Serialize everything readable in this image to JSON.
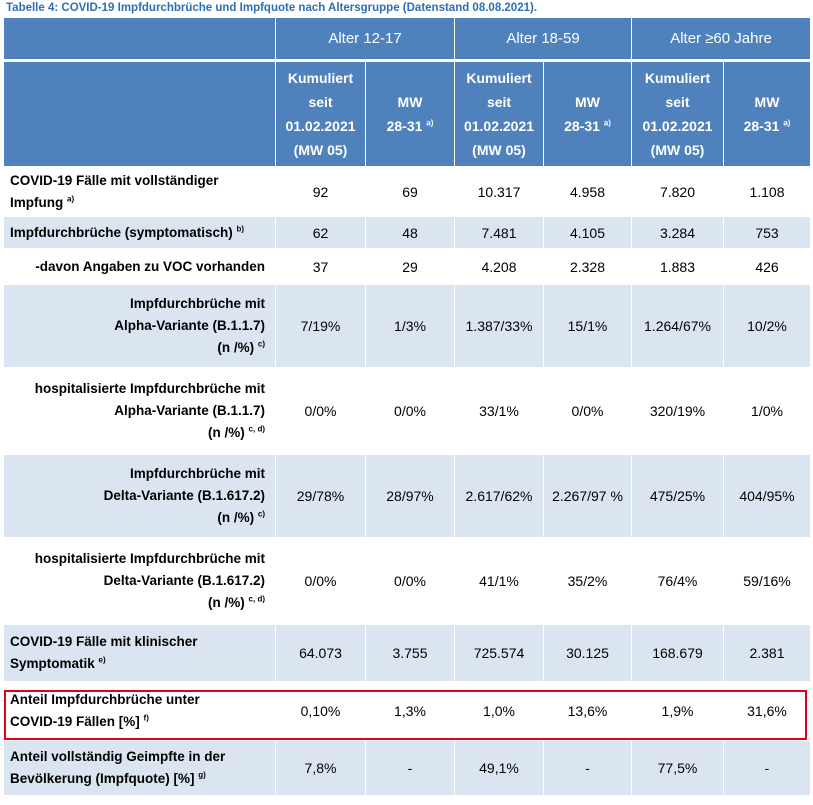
{
  "caption": "Tabelle 4: COVID-19 Impfdurchbrüche und Impfquote nach Altersgruppe (Datenstand 08.08.2021).",
  "age_groups": [
    "Alter 12-17",
    "Alter 18-59",
    "Alter ≥60 Jahre"
  ],
  "subheaders": {
    "kumuliert": [
      "Kumuliert",
      "seit",
      "01.02.2021",
      "(MW 05)"
    ],
    "mw": [
      "MW",
      "28-31"
    ],
    "mw_sup": "a)"
  },
  "rows": [
    {
      "label": [
        "COVID-19 Fälle mit vollständiger",
        "Impfung"
      ],
      "sup": "a)",
      "align": "left",
      "values": [
        "92",
        "69",
        "10.317",
        "4.958",
        "7.820",
        "1.108"
      ]
    },
    {
      "label": [
        "Impfdurchbrüche (symptomatisch)"
      ],
      "sup": "b)",
      "align": "left",
      "values": [
        "62",
        "48",
        "7.481",
        "4.105",
        "3.284",
        "753"
      ]
    },
    {
      "label": [
        "-davon Angaben zu VOC vorhanden"
      ],
      "sup": "",
      "align": "right",
      "values": [
        "37",
        "29",
        "4.208",
        "2.328",
        "1.883",
        "426"
      ]
    },
    {
      "label": [
        "Impfdurchbrüche mit",
        "Alpha-Variante (B.1.1.7)",
        "(n /%)"
      ],
      "sup": "c)",
      "align": "right",
      "values": [
        "7/19%",
        "1/3%",
        "1.387/33%",
        "15/1%",
        "1.264/67%",
        "10/2%"
      ]
    },
    {
      "label": [
        "hospitalisierte Impfdurchbrüche mit",
        "Alpha-Variante (B.1.1.7)",
        "(n /%)"
      ],
      "sup": "c, d)",
      "align": "right",
      "values": [
        "0/0%",
        "0/0%",
        "33/1%",
        "0/0%",
        "320/19%",
        "1/0%"
      ]
    },
    {
      "label": [
        "Impfdurchbrüche mit",
        "Delta-Variante (B.1.617.2)",
        "(n /%)"
      ],
      "sup": "c)",
      "align": "right",
      "values": [
        "29/78%",
        "28/97%",
        "2.617/62%",
        "2.267/97 %",
        "475/25%",
        "404/95%"
      ]
    },
    {
      "label": [
        "hospitalisierte Impfdurchbrüche mit",
        "Delta-Variante (B.1.617.2)",
        "(n /%)"
      ],
      "sup": "c, d)",
      "align": "right",
      "values": [
        "0/0%",
        "0/0%",
        "41/1%",
        "35/2%",
        "76/4%",
        "59/16%"
      ]
    },
    {
      "label": [
        "COVID-19 Fälle mit klinischer",
        "Symptomatik"
      ],
      "sup": "e)",
      "align": "left",
      "values": [
        "64.073",
        "3.755",
        "725.574",
        "30.125",
        "168.679",
        "2.381"
      ]
    },
    {
      "label": [
        "Anteil Impfdurchbrüche unter",
        "COVID-19 Fällen [%]"
      ],
      "sup": "f)",
      "align": "left",
      "values": [
        "0,10%",
        "1,3%",
        "1,0%",
        "13,6%",
        "1,9%",
        "31,6%"
      ]
    },
    {
      "label": [
        "Anteil vollständig Geimpfte in der",
        "Bevölkerung (Impfquote) [%]"
      ],
      "sup": "g)",
      "align": "left",
      "values": [
        "7,8%",
        "-",
        "49,1%",
        "-",
        "77,5%",
        "-"
      ]
    }
  ],
  "colors": {
    "header_bg": "#4f81bd",
    "band_bg": "#dbe5f1",
    "highlight_border": "#e0001a",
    "caption": "#2e6fb4"
  }
}
